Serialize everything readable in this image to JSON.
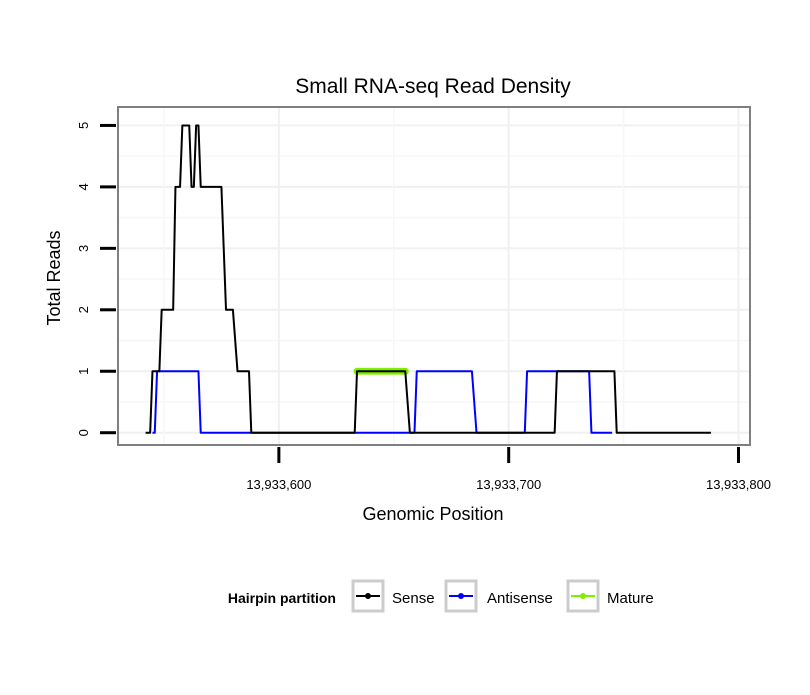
{
  "chart_data": {
    "type": "line",
    "title": "Small RNA-seq Read Density",
    "xlabel": "Genomic Position",
    "ylabel": "Total Reads",
    "xlim": [
      13933530,
      13933805
    ],
    "ylim": [
      -0.2,
      5.3
    ],
    "xticks": [
      13933600,
      13933700,
      13933800
    ],
    "xtick_labels": [
      "13,933,600",
      "13,933,700",
      "13,933,800"
    ],
    "yticks": [
      0,
      1,
      2,
      3,
      4,
      5
    ],
    "ytick_labels": [
      "0",
      "1",
      "2",
      "3",
      "4",
      "5"
    ],
    "grid": true,
    "legend": {
      "title": "Hairpin partition",
      "position": "bottom"
    },
    "series": [
      {
        "name": "Sense",
        "color": "#000000",
        "markers": false,
        "points": [
          [
            13933542,
            0
          ],
          [
            13933544,
            0
          ],
          [
            13933545,
            1
          ],
          [
            13933548,
            1
          ],
          [
            13933549,
            2
          ],
          [
            13933554,
            2
          ],
          [
            13933555,
            4
          ],
          [
            13933557,
            4
          ],
          [
            13933558,
            5
          ],
          [
            13933561,
            5
          ],
          [
            13933562,
            4
          ],
          [
            13933563,
            4
          ],
          [
            13933564,
            5
          ],
          [
            13933565,
            5
          ],
          [
            13933566,
            4
          ],
          [
            13933575,
            4
          ],
          [
            13933577,
            2
          ],
          [
            13933580,
            2
          ],
          [
            13933582,
            1
          ],
          [
            13933587,
            1
          ],
          [
            13933588,
            0
          ],
          [
            13933633,
            0
          ],
          [
            13933634,
            1
          ],
          [
            13933655,
            1
          ],
          [
            13933657,
            0
          ],
          [
            13933720,
            0
          ],
          [
            13933721,
            1
          ],
          [
            13933746,
            1
          ],
          [
            13933747,
            0
          ],
          [
            13933788,
            0
          ]
        ]
      },
      {
        "name": "Antisense",
        "color": "#0000ff",
        "markers": false,
        "points": [
          [
            13933545,
            0
          ],
          [
            13933546,
            0
          ],
          [
            13933547,
            1
          ],
          [
            13933565,
            1
          ],
          [
            13933566,
            0
          ],
          [
            13933659,
            0
          ],
          [
            13933660,
            1
          ],
          [
            13933684,
            1
          ],
          [
            13933686,
            0
          ],
          [
            13933707,
            0
          ],
          [
            13933708,
            1
          ],
          [
            13933735,
            1
          ],
          [
            13933736,
            0
          ],
          [
            13933745,
            0
          ]
        ]
      },
      {
        "name": "Mature",
        "color": "#80ee00",
        "markers": true,
        "points": [
          [
            13933634,
            1
          ],
          [
            13933635,
            1
          ],
          [
            13933636,
            1
          ],
          [
            13933637,
            1
          ],
          [
            13933638,
            1
          ],
          [
            13933639,
            1
          ],
          [
            13933640,
            1
          ],
          [
            13933641,
            1
          ],
          [
            13933642,
            1
          ],
          [
            13933643,
            1
          ],
          [
            13933644,
            1
          ],
          [
            13933645,
            1
          ],
          [
            13933646,
            1
          ],
          [
            13933647,
            1
          ],
          [
            13933648,
            1
          ],
          [
            13933649,
            1
          ],
          [
            13933650,
            1
          ],
          [
            13933651,
            1
          ],
          [
            13933652,
            1
          ],
          [
            13933653,
            1
          ],
          [
            13933654,
            1
          ],
          [
            13933655,
            1
          ]
        ]
      }
    ]
  }
}
